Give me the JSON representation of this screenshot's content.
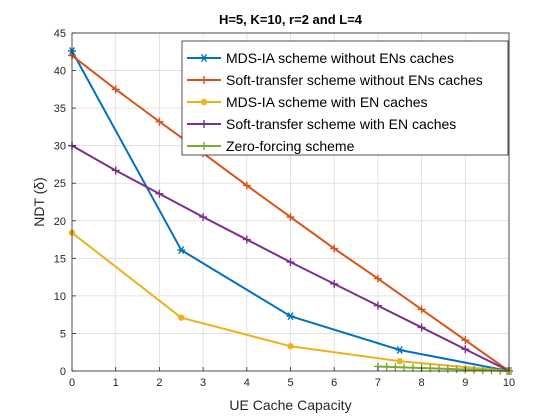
{
  "chart_data": {
    "type": "line",
    "title": "H=5, K=10, r=2 and L=4",
    "xlabel": "UE Cache Capacity",
    "ylabel": "NDT (δ)",
    "xlim": [
      0,
      10
    ],
    "ylim": [
      0,
      45
    ],
    "xticks": [
      "0",
      "1",
      "2",
      "3",
      "4",
      "5",
      "6",
      "7",
      "8",
      "9",
      "10"
    ],
    "yticks": [
      "0",
      "5",
      "10",
      "15",
      "20",
      "25",
      "30",
      "35",
      "40",
      "45"
    ],
    "grid": true,
    "legend_position": "top-right",
    "series": [
      {
        "name": "MDS-IA scheme without ENs caches",
        "color": "#0072BD",
        "marker": "asterisk",
        "x": [
          0,
          2.5,
          5,
          7.5,
          10
        ],
        "y": [
          42.6,
          16.1,
          7.3,
          2.8,
          0
        ]
      },
      {
        "name": "Soft-transfer scheme without ENs caches",
        "color": "#D95319",
        "marker": "plus",
        "x": [
          0,
          1,
          2,
          3,
          4,
          5,
          6,
          7,
          8,
          9,
          10
        ],
        "y": [
          42.0,
          37.5,
          33.2,
          29.0,
          24.7,
          20.5,
          16.3,
          12.3,
          8.2,
          4.1,
          0
        ]
      },
      {
        "name": "MDS-IA scheme with EN caches",
        "color": "#EDB120",
        "marker": "dot",
        "x": [
          0,
          2.5,
          5,
          7.5,
          10
        ],
        "y": [
          18.4,
          7.1,
          3.3,
          1.3,
          0
        ]
      },
      {
        "name": "Soft-transfer scheme with EN caches",
        "color": "#7E2F8E",
        "marker": "plus",
        "x": [
          0,
          1,
          2,
          3,
          4,
          5,
          6,
          7,
          8,
          9,
          10
        ],
        "y": [
          30.0,
          26.7,
          23.6,
          20.5,
          17.5,
          14.5,
          11.6,
          8.7,
          5.8,
          2.9,
          0
        ]
      },
      {
        "name": "Zero-forcing scheme",
        "color": "#77AC30",
        "marker": "plus",
        "x": [
          7,
          7.2,
          7.4,
          7.6,
          7.8,
          8.0,
          8.2,
          8.4,
          8.6,
          8.8,
          9.0,
          9.2,
          9.4,
          9.6,
          9.8,
          10.0
        ],
        "y": [
          0.6,
          0.56,
          0.52,
          0.48,
          0.44,
          0.4,
          0.36,
          0.32,
          0.28,
          0.24,
          0.2,
          0.16,
          0.12,
          0.08,
          0.04,
          0.0
        ]
      }
    ]
  }
}
